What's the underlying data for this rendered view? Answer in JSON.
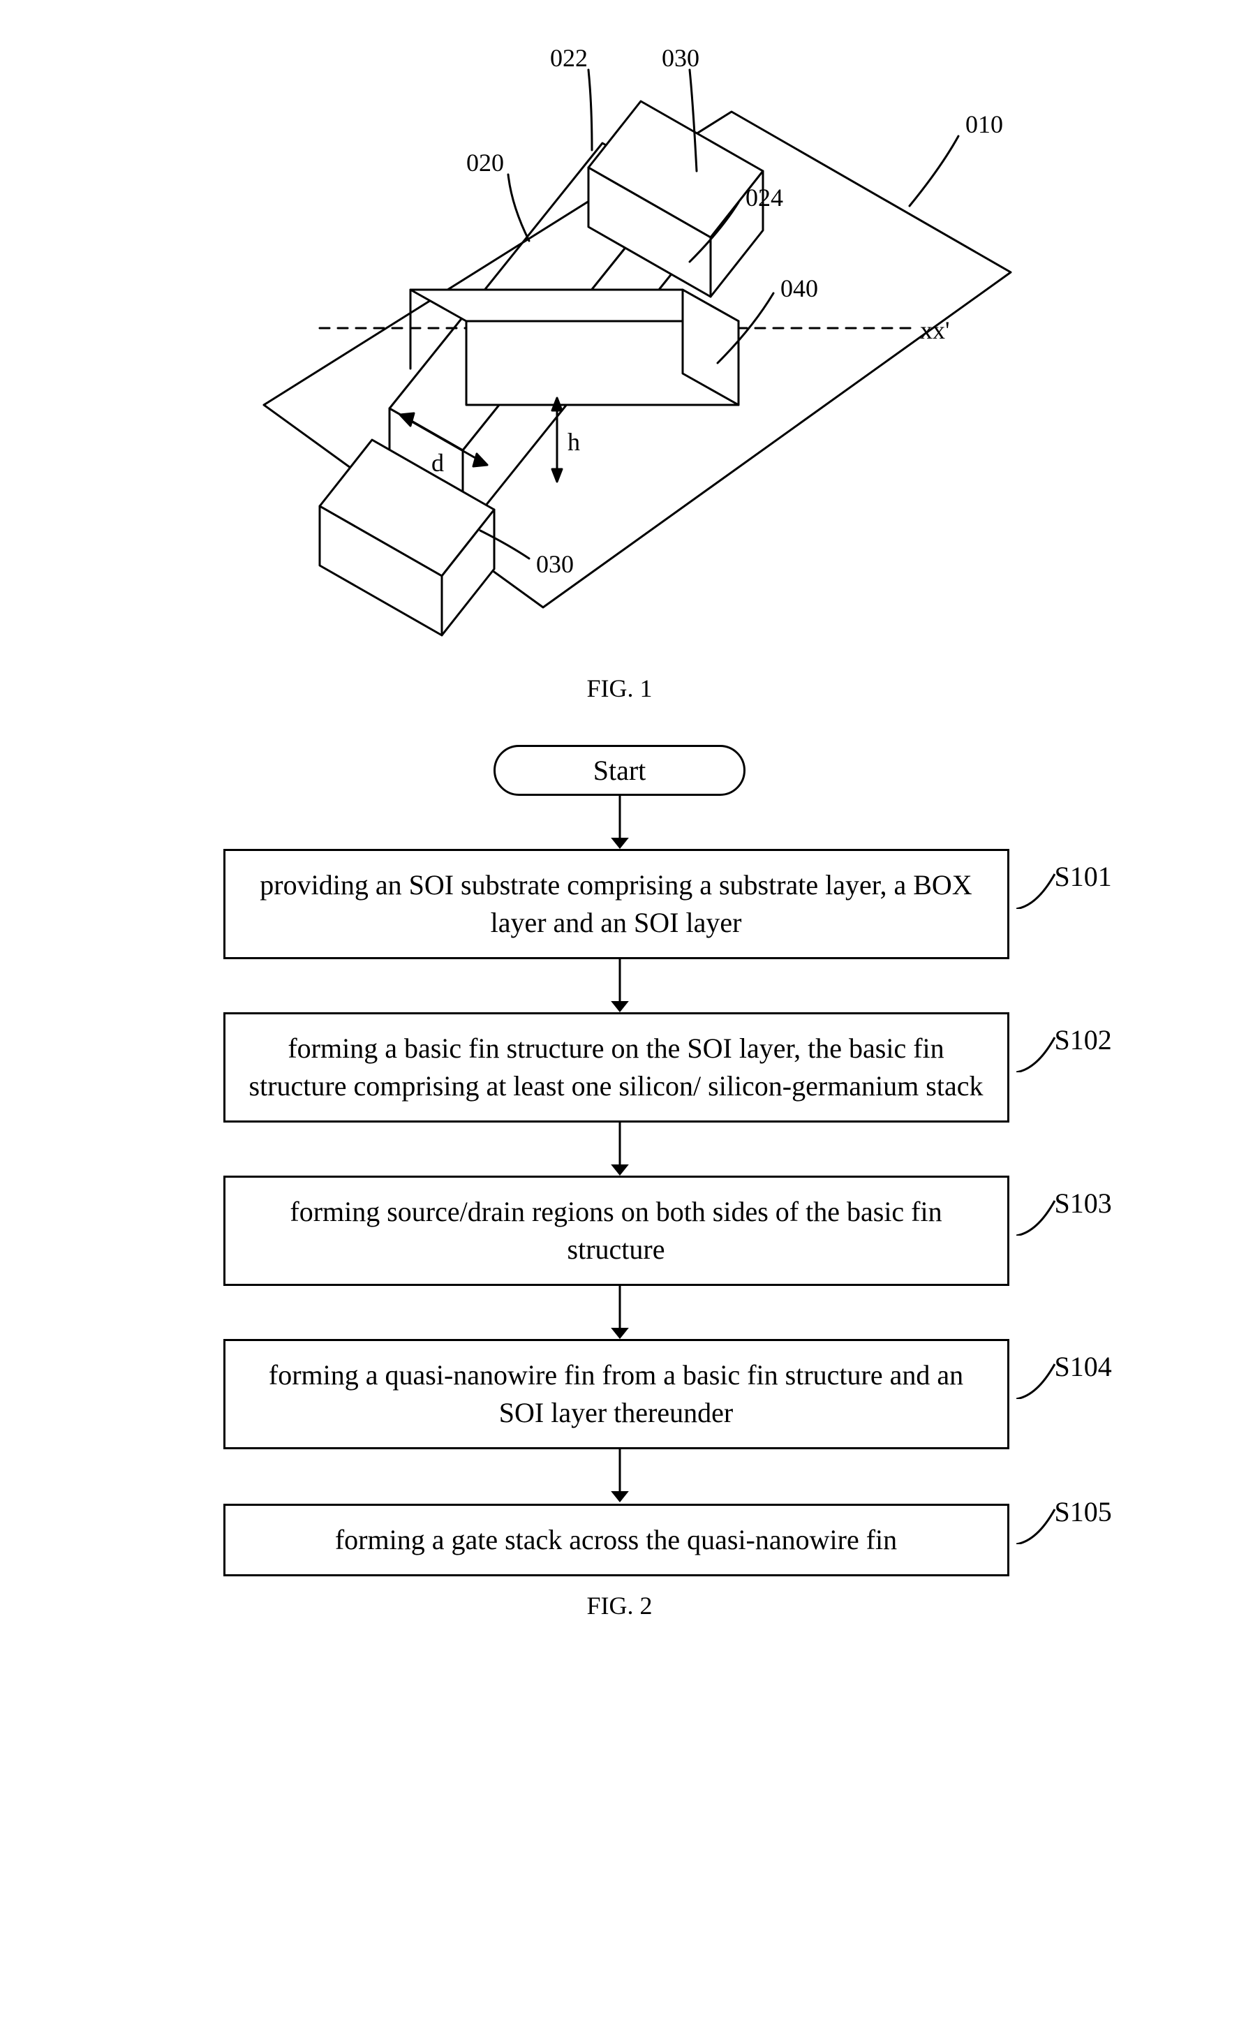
{
  "fig1": {
    "caption": "FIG. 1",
    "labels": {
      "l022": "022",
      "l030a": "030",
      "l010": "010",
      "l020": "020",
      "l024": "024",
      "l040": "040",
      "lxx": "xx'",
      "ld": "d",
      "lh": "h",
      "l030b": "030"
    },
    "stroke": "#000000",
    "stroke_width": 3,
    "font_size": 36
  },
  "fig2": {
    "caption": "FIG. 2",
    "start": "Start",
    "steps": [
      {
        "id": "S101",
        "text": "providing an SOI substrate comprising a substrate layer, a BOX layer and an SOI layer"
      },
      {
        "id": "S102",
        "text": "forming a basic fin structure on the SOI layer, the basic fin structure comprising at least one silicon/ silicon-germanium stack"
      },
      {
        "id": "S103",
        "text": "forming source/drain regions on both sides of the basic fin structure"
      },
      {
        "id": "S104",
        "text": "forming a quasi-nanowire fin from a basic fin structure and an SOI layer thereunder"
      },
      {
        "id": "S105",
        "text": "forming a gate stack across the quasi-nanowire fin"
      }
    ],
    "arrow": {
      "length": 60,
      "head": 16,
      "stroke_width": 3
    },
    "connector": {
      "stroke_width": 3
    }
  }
}
